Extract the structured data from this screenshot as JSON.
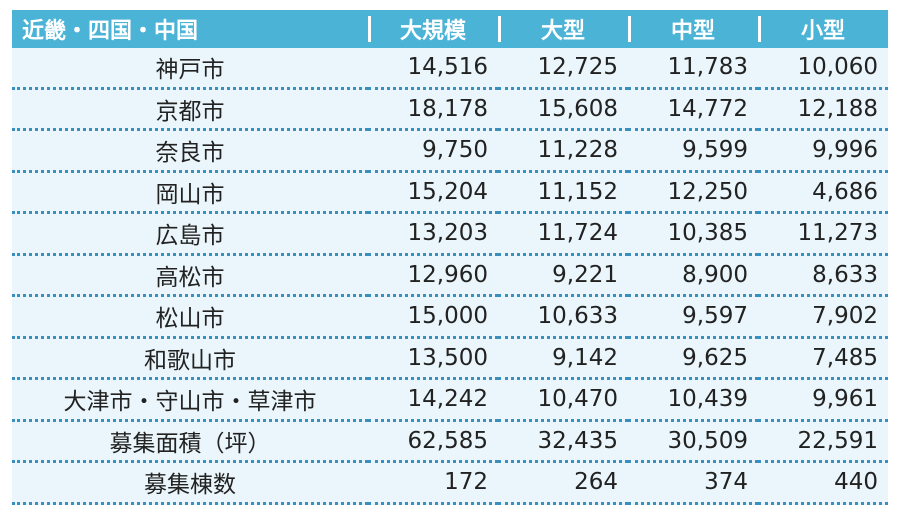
{
  "table": {
    "headers": [
      "近畿・四国・中国",
      "大規模",
      "大型",
      "中型",
      "小型"
    ],
    "rows": [
      {
        "name": "神戸市",
        "values": [
          "14,516",
          "12,725",
          "11,783",
          "10,060"
        ]
      },
      {
        "name": "京都市",
        "values": [
          "18,178",
          "15,608",
          "14,772",
          "12,188"
        ]
      },
      {
        "name": "奈良市",
        "values": [
          "9,750",
          "11,228",
          "9,599",
          "9,996"
        ]
      },
      {
        "name": "岡山市",
        "values": [
          "15,204",
          "11,152",
          "12,250",
          "4,686"
        ]
      },
      {
        "name": "広島市",
        "values": [
          "13,203",
          "11,724",
          "10,385",
          "11,273"
        ]
      },
      {
        "name": "高松市",
        "values": [
          "12,960",
          "9,221",
          "8,900",
          "8,633"
        ]
      },
      {
        "name": "松山市",
        "values": [
          "15,000",
          "10,633",
          "9,597",
          "7,902"
        ]
      },
      {
        "name": "和歌山市",
        "values": [
          "13,500",
          "9,142",
          "9,625",
          "7,485"
        ]
      },
      {
        "name": "大津市・守山市・草津市",
        "values": [
          "14,242",
          "10,470",
          "10,439",
          "9,961"
        ]
      },
      {
        "name": "募集面積（坪）",
        "values": [
          "62,585",
          "32,435",
          "30,509",
          "22,591"
        ]
      },
      {
        "name": "募集棟数",
        "values": [
          "172",
          "264",
          "374",
          "440"
        ]
      }
    ]
  },
  "colors": {
    "header_bg": "#4bb3d6",
    "row_bg": "#eaf6fb",
    "divider": "#3a8fc1"
  }
}
